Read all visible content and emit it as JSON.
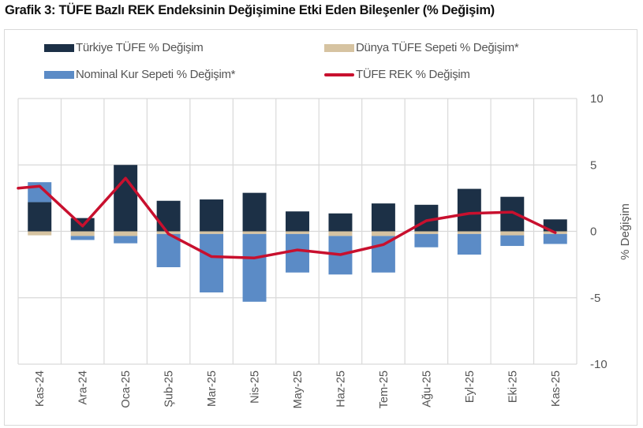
{
  "title": "Grafik 3: TÜFE Bazlı REK Endeksinin Değişimine Etki Eden Bileşenler (% Değişim)",
  "chart_data": {
    "type": "bar",
    "stacked": true,
    "categories": [
      "Kas-24",
      "Ara-24",
      "Oca-25",
      "Şub-25",
      "Mar-25",
      "Nis-25",
      "May-25",
      "Haz-25",
      "Tem-25",
      "Ağu-25",
      "Eyl-25",
      "Eki-25",
      "Kas-25"
    ],
    "series": [
      {
        "name": "Türkiye TÜFE % Değişim",
        "type": "bar",
        "color": "#1c3046",
        "values": [
          2.2,
          1.0,
          5.0,
          2.3,
          2.4,
          2.9,
          1.5,
          1.35,
          2.1,
          2.0,
          3.2,
          2.6,
          0.9
        ]
      },
      {
        "name": "Dünya TÜFE Sepeti % Değişim*",
        "type": "bar",
        "color": "#d6c3a1",
        "values": [
          -0.3,
          -0.35,
          -0.35,
          -0.2,
          -0.2,
          -0.2,
          -0.2,
          -0.35,
          -0.35,
          -0.2,
          -0.2,
          -0.3,
          -0.2
        ]
      },
      {
        "name": "Nominal Kur Sepeti % Değişim*",
        "type": "bar",
        "color": "#5b8bc6",
        "values": [
          1.5,
          -0.3,
          -0.55,
          -2.5,
          -4.4,
          -5.1,
          -2.9,
          -2.9,
          -2.75,
          -1.0,
          -1.55,
          -0.8,
          -0.75
        ]
      },
      {
        "name": "TÜFE REK % Değişim",
        "type": "line",
        "color": "#c8102e",
        "values": [
          3.4,
          0.4,
          4.0,
          -0.2,
          -1.9,
          -2.0,
          -1.4,
          -1.75,
          -1.0,
          0.8,
          1.35,
          1.45,
          -0.1
        ]
      }
    ],
    "ylabel": "% Değişim",
    "ylim": [
      -10,
      10
    ],
    "yticks": [
      "10",
      "5",
      "0",
      "-5",
      "-10"
    ],
    "y_axis_side": "right",
    "grid": true,
    "legend": "top"
  }
}
